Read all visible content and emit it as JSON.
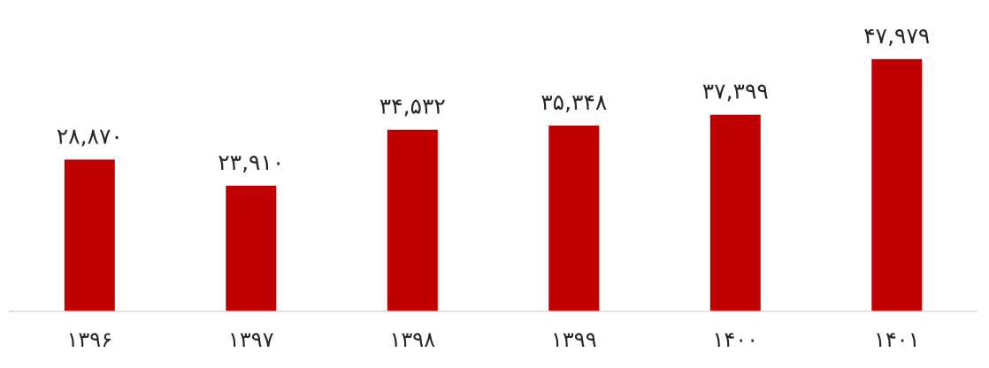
{
  "chart_data": {
    "type": "bar",
    "categories": [
      "۱۳۹۶",
      "۱۳۹۷",
      "۱۳۹۸",
      "۱۳۹۹",
      "۱۴۰۰",
      "۱۴۰۱"
    ],
    "values": [
      28870,
      23910,
      34532,
      35348,
      37399,
      47979
    ],
    "data_labels": [
      "۲۸,۸۷۰",
      "۲۳,۹۱۰",
      "۳۴,۵۳۲",
      "۳۵,۳۴۸",
      "۳۷,۳۹۹",
      "۴۷,۹۷۹"
    ],
    "title": "",
    "xlabel": "",
    "ylabel": "",
    "ylim": [
      0,
      50000
    ],
    "grid": false,
    "legend": "none",
    "colors": {
      "bar": "#C00000",
      "axis": "#D9D9D9",
      "text": "#262626"
    }
  }
}
